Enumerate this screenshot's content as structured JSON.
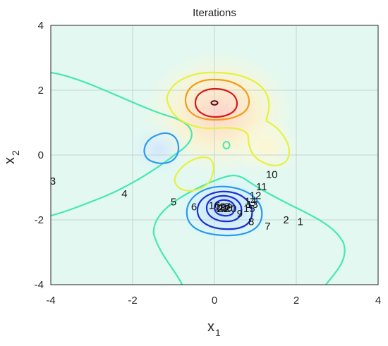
{
  "chart_data": {
    "type": "contour",
    "title": "Iterations",
    "xlabel": "x",
    "xlabel_sub": "1",
    "ylabel": "x",
    "ylabel_sub": "2",
    "xlim": [
      -4,
      4
    ],
    "ylim": [
      -4,
      4
    ],
    "xticks": [
      -4,
      -2,
      0,
      2,
      4
    ],
    "yticks": [
      -4,
      -2,
      0,
      2,
      4
    ],
    "grid": true,
    "colormap": [
      "#1a2fd0",
      "#2a9bef",
      "#46e8b4",
      "#e8f040",
      "#f59a1a",
      "#d71818",
      "#5a0a0a"
    ],
    "iteration_labels": [
      {
        "label": "1",
        "x": 2.1,
        "y": -2.05
      },
      {
        "label": "2",
        "x": 1.75,
        "y": -2.0
      },
      {
        "label": "3",
        "x": -3.95,
        "y": -0.8
      },
      {
        "label": "4",
        "x": -2.2,
        "y": -1.2
      },
      {
        "label": "5",
        "x": -1.0,
        "y": -1.45
      },
      {
        "label": "6",
        "x": -0.5,
        "y": -1.6
      },
      {
        "label": "7",
        "x": 1.3,
        "y": -2.2
      },
      {
        "label": "8",
        "x": 0.9,
        "y": -2.05
      },
      {
        "label": "9",
        "x": 0.62,
        "y": -1.8
      },
      {
        "label": "10",
        "x": 1.4,
        "y": -0.6
      },
      {
        "label": "11",
        "x": 1.15,
        "y": -0.98
      },
      {
        "label": "12",
        "x": 1.0,
        "y": -1.25
      },
      {
        "label": "13",
        "x": 0.92,
        "y": -1.52
      },
      {
        "label": "14",
        "x": 0.88,
        "y": -1.42
      },
      {
        "label": "15",
        "x": 0.85,
        "y": -1.65
      },
      {
        "label": "16",
        "x": 0.0,
        "y": -1.55
      },
      {
        "label": "17",
        "x": 0.25,
        "y": -1.6
      },
      {
        "label": "18",
        "x": 0.3,
        "y": -1.62
      },
      {
        "label": "19",
        "x": 0.15,
        "y": -1.6
      },
      {
        "label": "20",
        "x": 0.4,
        "y": -1.65
      },
      {
        "label": "21",
        "x": 0.2,
        "y": -1.65
      },
      {
        "label": "22",
        "x": 0.22,
        "y": -1.65
      }
    ]
  }
}
